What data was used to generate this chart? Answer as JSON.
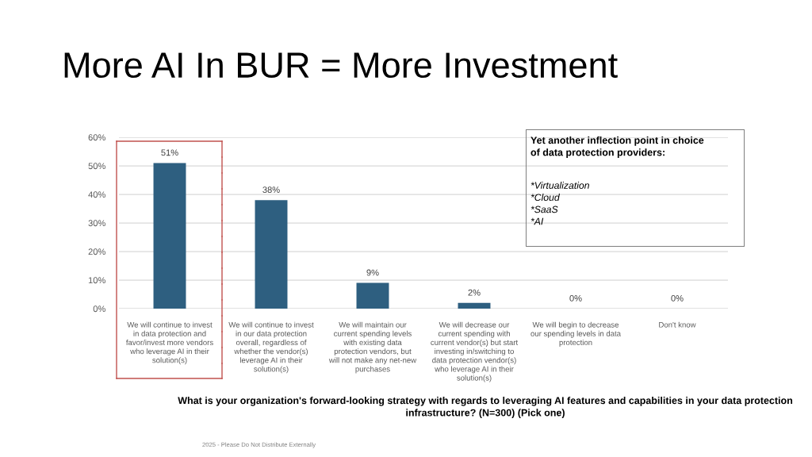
{
  "chart_data": {
    "type": "bar",
    "title": "More AI In BUR = More Investment",
    "categories": [
      "We will continue to invest\nin data protection and\nfavor/invest more vendors\nwho leverage AI in their\nsolution(s)",
      "We will continue to invest\nin our data protection\noverall, regardless of\nwhether the vendor(s)\nleverage AI in their\nsolution(s)",
      "We will maintain our\ncurrent spending levels\nwith existing data\nprotection vendors, but\nwill not make any net-new\npurchases",
      "We will decrease our\ncurrent spending with\ncurrent vendor(s) but start\ninvesting in/switching to\ndata protection vendor(s)\nwho leverage AI in their\nsolution(s)",
      "We will begin to decrease\nour spending levels in data\nprotection",
      "Don't know"
    ],
    "values": [
      51,
      38,
      9,
      2,
      0,
      0
    ],
    "color": "#2e5f80",
    "value_labels": [
      "51%",
      "38%",
      "9%",
      "2%",
      "0%",
      "0%"
    ],
    "ylim": [
      0,
      60
    ],
    "yticks": [
      {
        "value": 0,
        "label": "0%"
      },
      {
        "value": 10,
        "label": "10%"
      },
      {
        "value": 20,
        "label": "20%"
      },
      {
        "value": 30,
        "label": "30%"
      },
      {
        "value": 40,
        "label": "40%"
      },
      {
        "value": 50,
        "label": "50%"
      },
      {
        "value": 60,
        "label": "60%"
      }
    ],
    "grid": "y",
    "legend": false,
    "annotations": [
      "Yet another inflection point in choice\nof data protection providers:",
      "*Virtualization\n*Cloud\n*SaaS\n*AI",
      "What is your organization's forward-looking strategy with regards to leveraging AI features and capabilities in your data protection infrastructure? (N=300) (Pick one)",
      "2025 - Please Do Not Distribute Externally"
    ]
  }
}
